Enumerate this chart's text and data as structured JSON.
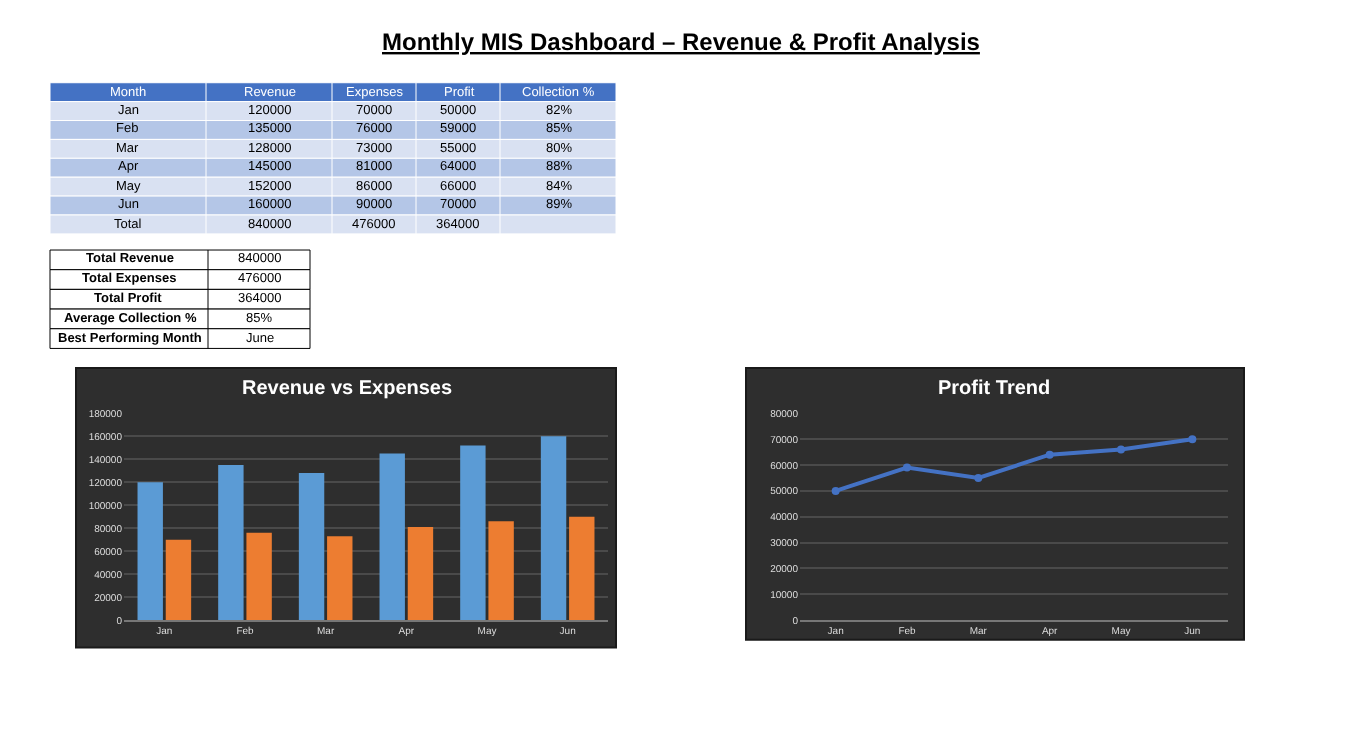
{
  "chart_data": [
    {
      "type": "other",
      "title": "Monthly MIS Dashboard – Revenue & Profit Analysis",
      "annotations": [
        "Month",
        "Revenue",
        "Expenses",
        "Profit",
        "Collection %",
        "Jan",
        "120000",
        "70000",
        "50000",
        "82%",
        "Feb",
        "135000",
        "76000",
        "59000",
        "85%",
        "Mar",
        "128000",
        "73000",
        "55000",
        "80%",
        "Apr",
        "145000",
        "81000",
        "64000",
        "88%",
        "May",
        "152000",
        "86000",
        "66000",
        "84%",
        "Jun",
        "160000",
        "90000",
        "70000",
        "89%",
        "Total",
        "840000",
        "476000",
        "364000",
        null
      ]
    },
    {
      "type": "other",
      "annotations": [
        "Total Revenue",
        "840000",
        "Total Expenses",
        "476000",
        "Total Profit",
        "364000",
        "Average Collection %",
        "85%",
        "Best Performing Month",
        "June"
      ]
    },
    {
      "type": "bar",
      "title": "Revenue vs Expenses",
      "categories": [
        "Jan",
        "Feb",
        "Mar",
        "Apr",
        "May",
        "Jun"
      ],
      "series": [
        {
          "color": "#5b9bd5",
          "values": [
            120000,
            135000,
            128000,
            145000,
            152000,
            160000
          ]
        },
        {
          "color": "#ed7d31",
          "values": [
            70000,
            76000,
            73000,
            81000,
            86000,
            90000
          ]
        }
      ],
      "ylim": [
        0,
        180000
      ],
      "yticks": [
        0,
        20000,
        40000,
        60000,
        80000,
        100000,
        120000,
        140000,
        160000,
        180000
      ],
      "grid": "y"
    },
    {
      "type": "line",
      "title": "Profit Trend",
      "categories": [
        "Jan",
        "Feb",
        "Mar",
        "Apr",
        "May",
        "Jun"
      ],
      "series": [
        {
          "color": "#4472c4",
          "values": [
            50000,
            59000,
            55000,
            64000,
            66000,
            70000
          ]
        }
      ],
      "ylim": [
        0,
        80000
      ],
      "yticks": [
        0,
        10000,
        20000,
        30000,
        40000,
        50000,
        60000,
        70000,
        80000
      ],
      "grid": "y",
      "marker": "circle",
      "line_style": "solid"
    }
  ]
}
